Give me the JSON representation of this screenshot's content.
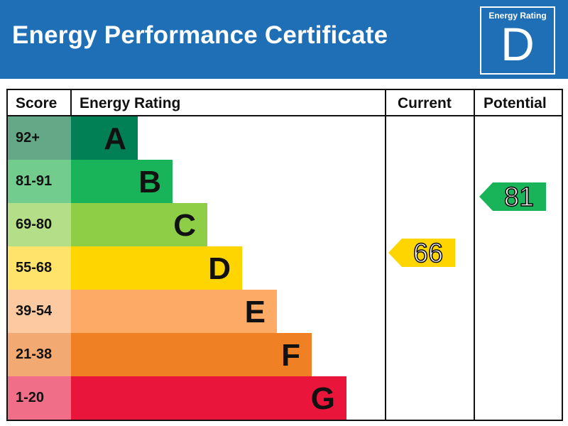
{
  "header": {
    "title": "Energy Performance Certificate",
    "badge_label": "Energy Rating",
    "badge_letter": "D",
    "background_color": "#1f6fb7"
  },
  "table": {
    "columns": [
      "Score",
      "Energy Rating",
      "Current",
      "Potential"
    ]
  },
  "bands": [
    {
      "score": "92+",
      "letter": "A",
      "bar_color": "#008054",
      "score_color": "#64a887",
      "bar_end_x": 194
    },
    {
      "score": "81-91",
      "letter": "B",
      "bar_color": "#19b459",
      "score_color": "#72cc8e",
      "bar_end_x": 243
    },
    {
      "score": "69-80",
      "letter": "C",
      "bar_color": "#8dce46",
      "score_color": "#b4df88",
      "bar_end_x": 292
    },
    {
      "score": "55-68",
      "letter": "D",
      "bar_color": "#ffd500",
      "score_color": "#ffe36a",
      "bar_end_x": 341
    },
    {
      "score": "39-54",
      "letter": "E",
      "bar_color": "#fcaa65",
      "score_color": "#fdc9a0",
      "bar_end_x": 390
    },
    {
      "score": "21-38",
      "letter": "F",
      "bar_color": "#ef8023",
      "score_color": "#f3aa72",
      "bar_end_x": 439
    },
    {
      "score": "1-20",
      "letter": "G",
      "bar_color": "#e9153b",
      "score_color": "#f06e88",
      "bar_end_x": 488
    }
  ],
  "current": {
    "value": "66",
    "band": "D",
    "color": "#ffd500"
  },
  "potential": {
    "value": "81",
    "band": "B",
    "color": "#19b459"
  },
  "chart_data": {
    "type": "bar",
    "title": "Energy Performance Certificate",
    "categories": [
      "A",
      "B",
      "C",
      "D",
      "E",
      "F",
      "G"
    ],
    "score_ranges": [
      "92+",
      "81-91",
      "69-80",
      "55-68",
      "39-54",
      "21-38",
      "1-20"
    ],
    "values": [
      1,
      2,
      3,
      4,
      5,
      6,
      7
    ],
    "series": [
      {
        "name": "Current",
        "values": [
          66
        ],
        "band": "D"
      },
      {
        "name": "Potential",
        "values": [
          81
        ],
        "band": "B"
      }
    ],
    "overall_rating": "D",
    "xlabel": "Energy Rating",
    "ylabel": "Score"
  }
}
